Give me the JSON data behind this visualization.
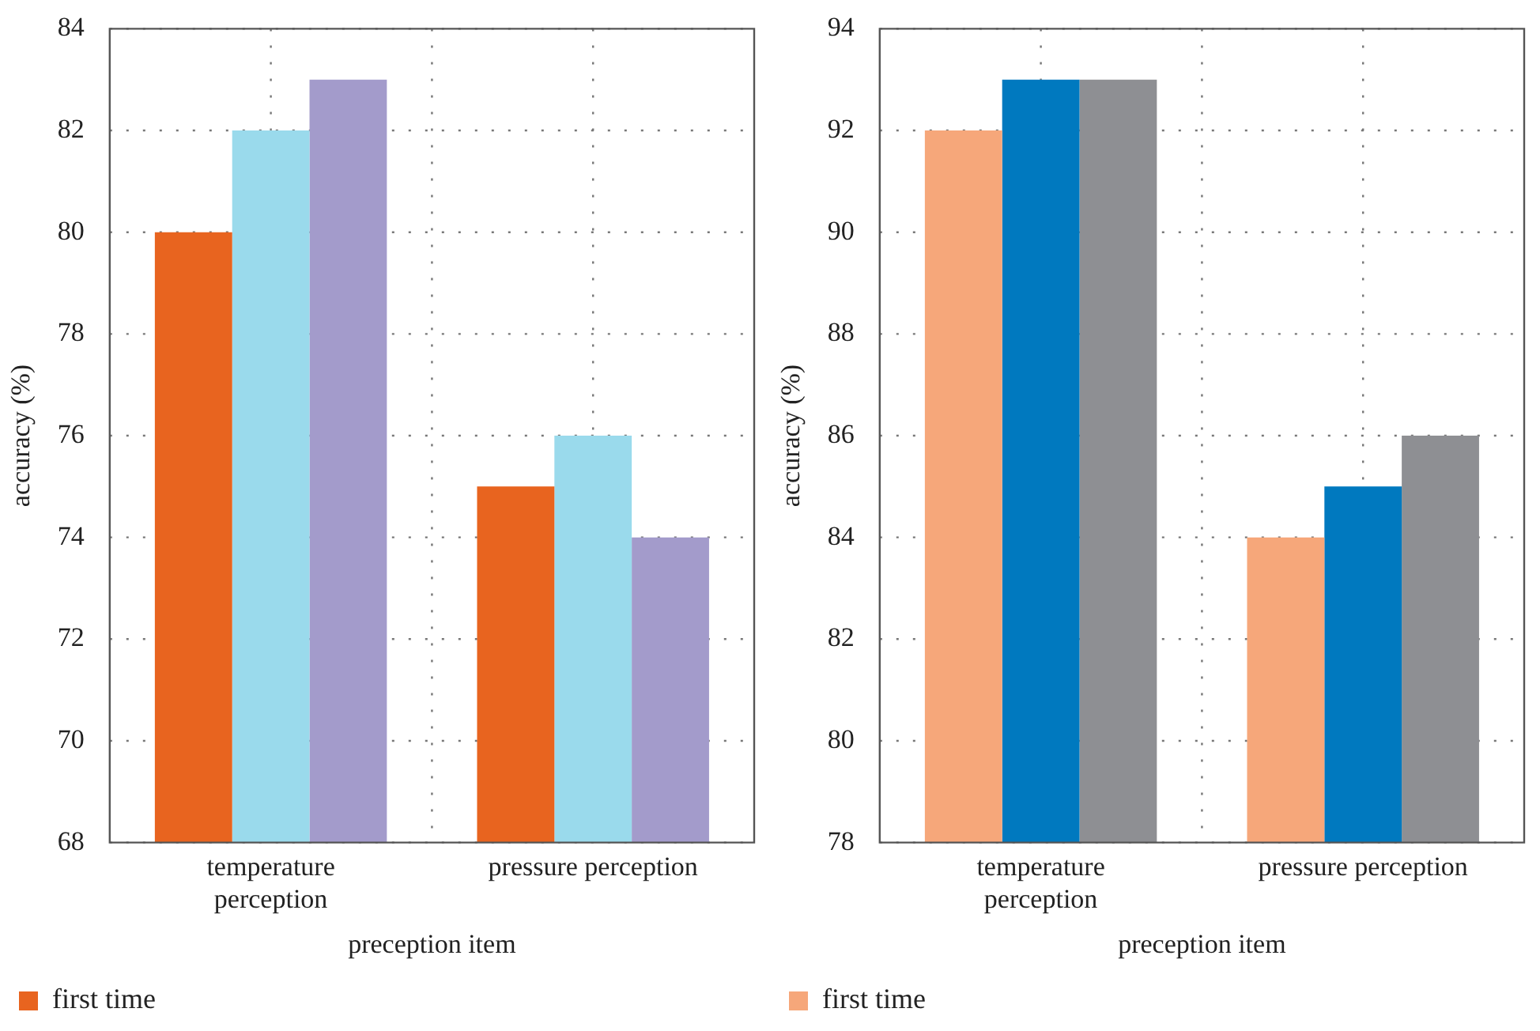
{
  "chart_data": [
    {
      "type": "bar",
      "xlabel": "preception item",
      "ylabel": "accuracy (%)",
      "categories": [
        "temperature perception",
        "pressure perception"
      ],
      "series": [
        {
          "name": "first time",
          "color": "#e8641f",
          "values": [
            80,
            75
          ]
        },
        {
          "color": "#9adaec",
          "values": [
            82,
            76
          ]
        },
        {
          "color": "#a39bcb",
          "values": [
            83,
            74
          ]
        }
      ],
      "ylim": [
        68,
        84
      ],
      "yticks": [
        68,
        70,
        72,
        74,
        76,
        78,
        80,
        82,
        84
      ],
      "grid": true,
      "legend": "bottom left"
    },
    {
      "type": "bar",
      "xlabel": "preception item",
      "ylabel": "accuracy (%)",
      "categories": [
        "temperature perception",
        "pressure perception"
      ],
      "series": [
        {
          "name": "first time",
          "color": "#f6a77a",
          "values": [
            92,
            84
          ]
        },
        {
          "color": "#0079bf",
          "values": [
            93,
            85
          ]
        },
        {
          "color": "#8e8f93",
          "values": [
            93,
            86
          ]
        }
      ],
      "ylim": [
        78,
        94
      ],
      "yticks": [
        78,
        80,
        82,
        84,
        86,
        88,
        90,
        92,
        94
      ],
      "grid": true,
      "legend": "bottom left"
    }
  ]
}
